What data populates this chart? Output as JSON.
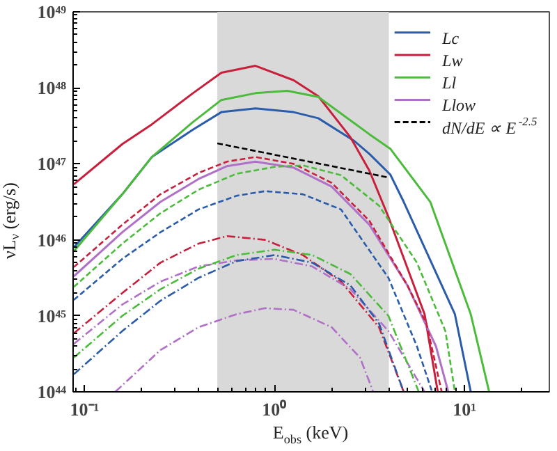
{
  "chart_data": {
    "type": "line",
    "xlabel": "E$_{obs}$ (keV)",
    "ylabel": "νL$_{ν}$ (erg/s)",
    "log": "xy",
    "grid": false,
    "legend": "top right",
    "xlim": [
      0.087,
      28
    ],
    "ylim": [
      1e+44,
      1e+49
    ],
    "xticks": [
      {
        "value": 0.1,
        "label": "10⁻¹"
      },
      {
        "value": 1,
        "label": "10⁰"
      },
      {
        "value": 10,
        "label": "10¹"
      }
    ],
    "yticks": [
      {
        "value": 1e+44,
        "label": "10⁴⁴"
      },
      {
        "value": 1e+45,
        "label": "10⁴⁵"
      },
      {
        "value": 1e+46,
        "label": "10⁴⁶"
      },
      {
        "value": 1e+47,
        "label": "10⁴⁷"
      },
      {
        "value": 1e+48,
        "label": "10⁴⁸"
      },
      {
        "value": 1e+49,
        "label": "10⁴⁹"
      }
    ],
    "bands": [
      {
        "axis": "x",
        "from": 0.5,
        "to": 4,
        "color": "#d9d9d9"
      }
    ],
    "series": [
      {
        "name": "Lc",
        "color": "#2a5caa",
        "line_style": "solid",
        "x": [
          0.0877,
          0.158,
          0.226,
          0.372,
          0.525,
          0.794,
          1.26,
          1.7,
          2.63,
          3.16,
          4.07,
          4.79,
          8.91,
          10.8
        ],
        "values": [
          7.94e+45,
          3.98e+46,
          1.23e+47,
          2.82e+47,
          4.79e+47,
          5.37e+47,
          4.79e+47,
          3.98e+47,
          2e+47,
          1.35e+47,
          7.24e+46,
          3.16e+46,
          1.05e+45,
          1e+44
        ]
      },
      {
        "name": "Lw",
        "color": "#c8203c",
        "line_style": "solid",
        "x": [
          0.0877,
          0.158,
          0.226,
          0.372,
          0.525,
          0.794,
          1.26,
          1.7,
          2.51,
          3.16,
          3.98,
          6.17,
          7.24
        ],
        "values": [
          5.37e+46,
          1.82e+47,
          3.31e+47,
          8.51e+47,
          1.58e+48,
          1.95e+48,
          1.26e+48,
          7.76e+47,
          2.24e+47,
          8.13e+46,
          2e+46,
          1.05e+45,
          1e+44
        ]
      },
      {
        "name": "Ll",
        "color": "#4cbb3c",
        "line_style": "solid",
        "x": [
          0.0877,
          0.158,
          0.226,
          0.372,
          0.525,
          0.794,
          1.17,
          1.7,
          3.16,
          4.07,
          6.61,
          10.8,
          13.5
        ],
        "values": [
          7.08e+45,
          3.98e+46,
          1.23e+47,
          3.55e+47,
          6.92e+47,
          8.51e+47,
          9.12e+47,
          7.59e+47,
          2.45e+47,
          1.58e+47,
          3.16e+46,
          1.05e+45,
          1e+44
        ]
      },
      {
        "name": "Llow",
        "color": "#b070c8",
        "line_style": "solid",
        "x": [
          0.0877,
          0.158,
          0.251,
          0.398,
          0.562,
          0.794,
          1.26,
          2.0,
          3.16,
          5.01,
          7.08,
          8.22
        ],
        "values": [
          3.31e+45,
          1.26e+46,
          3.16e+46,
          6.31e+46,
          9.33e+46,
          1.07e+47,
          8.91e+46,
          5.01e+46,
          1.58e+46,
          2.51e+45,
          3.98e+44,
          1e+44
        ]
      },
      {
        "color": "#c8203c",
        "line_style": "dashed",
        "x": [
          0.0877,
          0.158,
          0.251,
          0.398,
          0.562,
          0.794,
          1.26,
          2.0,
          3.16,
          5.01,
          6.31,
          7.59
        ],
        "values": [
          4.37e+45,
          1.58e+46,
          3.98e+46,
          7.59e+46,
          1.07e+47,
          1.23e+47,
          1e+47,
          5.62e+46,
          1.78e+46,
          2.51e+45,
          7.94e+44,
          1e+44
        ]
      },
      {
        "color": "#4cbb3c",
        "line_style": "dashed",
        "x": [
          0.0877,
          0.158,
          0.251,
          0.398,
          0.631,
          1,
          1.41,
          2.24,
          3.55,
          5.62,
          7.94,
          8.91
        ],
        "values": [
          2.4e+45,
          8.91e+45,
          2.24e+46,
          4.57e+46,
          7.41e+46,
          9.12e+46,
          9.55e+46,
          7.08e+46,
          2.82e+46,
          5.01e+45,
          6.31e+44,
          1e+44
        ]
      },
      {
        "color": "#2a5caa",
        "line_style": "dashed",
        "x": [
          0.0877,
          0.158,
          0.251,
          0.398,
          0.631,
          0.891,
          1.41,
          2.24,
          3.98,
          5.62,
          6.76
        ],
        "values": [
          1.62e+45,
          5.62e+45,
          1.26e+46,
          2.51e+46,
          3.8e+46,
          4.37e+46,
          3.98e+46,
          2.51e+46,
          3.16e+45,
          3.98e+44,
          1e+44
        ]
      },
      {
        "color": "#c8203c",
        "line_style": "dashdot",
        "x": [
          0.0877,
          0.158,
          0.251,
          0.398,
          0.562,
          0.891,
          1.41,
          2.24,
          3.55,
          4.79
        ],
        "values": [
          5.89e+44,
          2e+45,
          5.01e+45,
          8.91e+45,
          1.12e+46,
          1e+46,
          6.31e+45,
          2.82e+45,
          7.08e+44,
          1e+44
        ]
      },
      {
        "color": "#b070c8",
        "line_style": "dashdot",
        "x": [
          0.0877,
          0.158,
          0.251,
          0.398,
          0.631,
          1,
          1.58,
          2.51,
          3.98,
          6.17
        ],
        "values": [
          4.27e+44,
          1.41e+45,
          2.82e+45,
          4.47e+45,
          5.37e+45,
          5.62e+45,
          4.47e+45,
          2.24e+45,
          6.31e+44,
          1e+44
        ]
      },
      {
        "color": "#4cbb3c",
        "line_style": "dashdot",
        "x": [
          0.0877,
          0.158,
          0.251,
          0.398,
          0.631,
          1,
          1.58,
          2.51,
          3.98,
          5.75
        ],
        "values": [
          2.82e+44,
          1e+45,
          2.24e+45,
          4.17e+45,
          6.31e+45,
          7.41e+45,
          6.31e+45,
          3.55e+45,
          1e+45,
          1e+44
        ]
      },
      {
        "color": "#2a5caa",
        "line_style": "dashdot",
        "x": [
          0.0877,
          0.158,
          0.251,
          0.398,
          0.631,
          1,
          1.58,
          2.51,
          3.55,
          4.79
        ],
        "values": [
          1.7e+44,
          6.31e+44,
          1.58e+45,
          3.16e+45,
          5.25e+45,
          6.31e+45,
          5.01e+45,
          2.51e+45,
          7.94e+44,
          1e+44
        ]
      },
      {
        "color": "#b070c8",
        "line_style": "dashdot",
        "x": [
          0.145,
          0.251,
          0.398,
          0.631,
          0.891,
          1.26,
          2.0,
          2.82,
          3.31
        ],
        "values": [
          1e+44,
          3.55e+44,
          7.08e+44,
          1.05e+45,
          1.26e+45,
          1.2e+45,
          7.08e+44,
          2.82e+44,
          1e+44
        ]
      },
      {
        "name": "dN/dE ∝ E$^{-2.5}$",
        "color": "#000000",
        "line_style": "dashed",
        "x": [
          0.5,
          4.0
        ],
        "values": [
          1.86e+47,
          6.6e+46
        ]
      }
    ]
  }
}
